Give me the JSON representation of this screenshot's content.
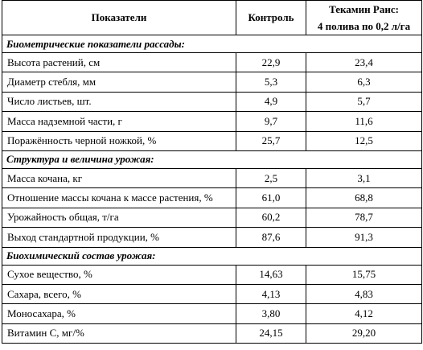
{
  "header": {
    "indicators": "Показатели",
    "control": "Контроль",
    "treatment_line1": "Текамин Раис:",
    "treatment_line2": "4 полива по 0,2 л/га"
  },
  "sections": [
    {
      "title": "Биометрические показатели рассады:",
      "rows": [
        {
          "name": "Высота растений, см",
          "control": "22,9",
          "treatment": "23,4"
        },
        {
          "name": "Диаметр стебля, мм",
          "control": "5,3",
          "treatment": "6,3"
        },
        {
          "name": "Число листьев, шт.",
          "control": "4,9",
          "treatment": "5,7"
        },
        {
          "name": "Масса надземной части, г",
          "control": "9,7",
          "treatment": "11,6"
        },
        {
          "name": "Поражённость черной ножкой, %",
          "control": "25,7",
          "treatment": "12,5"
        }
      ]
    },
    {
      "title": "Структура и величина урожая:",
      "rows": [
        {
          "name": "Масса кочана, кг",
          "control": "2,5",
          "treatment": "3,1"
        },
        {
          "name": "Отношение массы кочана к массе растения, %",
          "control": "61,0",
          "treatment": "68,8"
        },
        {
          "name": "Урожайность общая, т/га",
          "control": "60,2",
          "treatment": "78,7"
        },
        {
          "name": "Выход стандартной продукции, %",
          "control": "87,6",
          "treatment": "91,3"
        }
      ]
    },
    {
      "title": "Биохимический состав урожая:",
      "rows": [
        {
          "name": "Сухое вещество, %",
          "control": "14,63",
          "treatment": "15,75"
        },
        {
          "name": "Сахара, всего, %",
          "control": "4,13",
          "treatment": "4,83"
        },
        {
          "name": "Моносахара, %",
          "control": "3,80",
          "treatment": "4,12"
        },
        {
          "name": "Витамин С, мг/%",
          "control": "24,15",
          "treatment": "29,20"
        }
      ]
    }
  ]
}
